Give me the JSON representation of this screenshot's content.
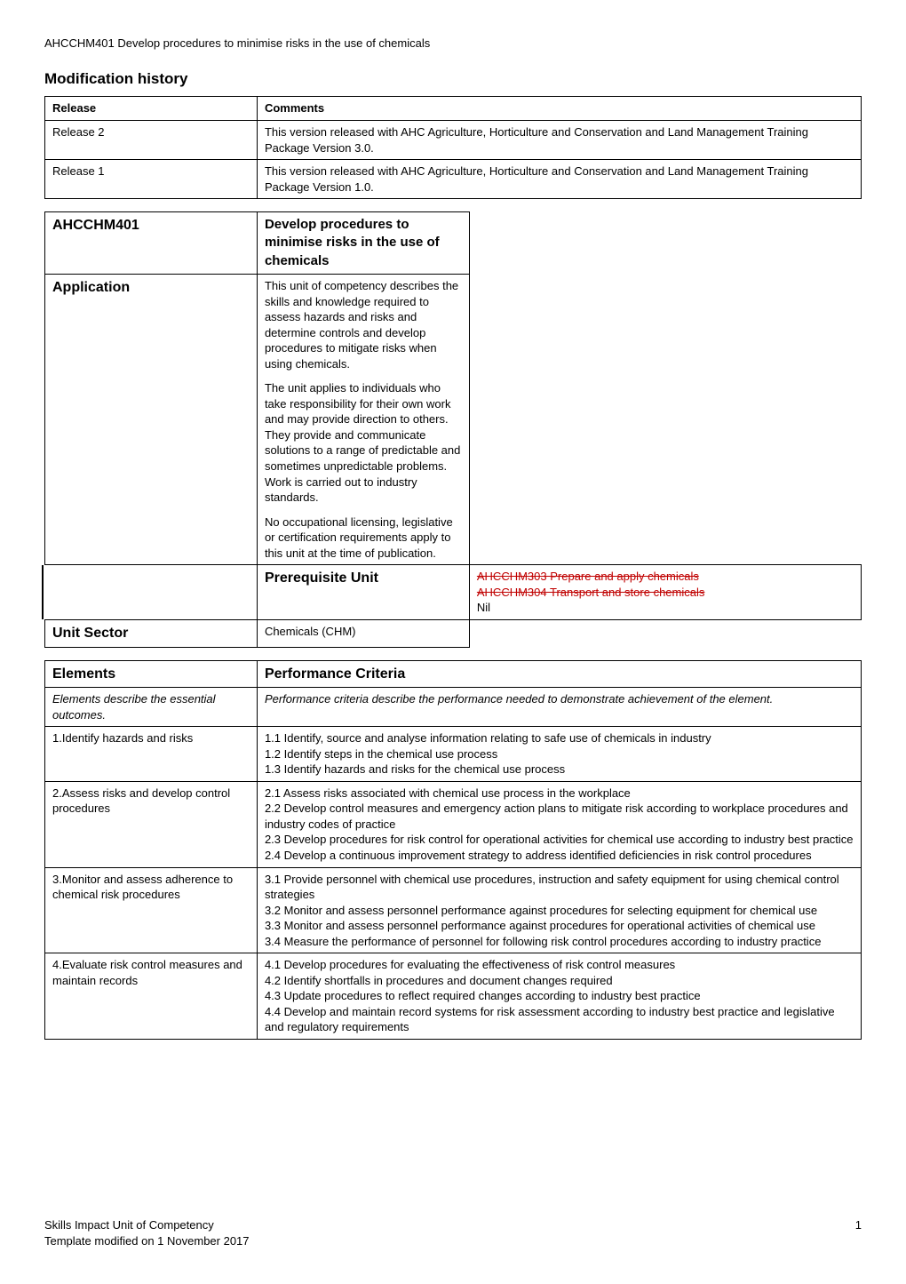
{
  "header": "AHCCHM401 Develop procedures to minimise risks in the use of chemicals",
  "modification_history": {
    "heading": "Modification history",
    "columns": [
      "Release",
      "Comments"
    ],
    "rows": [
      {
        "release": "Release 2",
        "comments": "This version released with AHC Agriculture, Horticulture and Conservation and Land Management Training Package Version 3.0."
      },
      {
        "release": "Release 1",
        "comments": "This version released with AHC Agriculture, Horticulture and Conservation and Land Management Training Package Version 1.0."
      }
    ]
  },
  "unit_table": {
    "code_label": "AHCCHM401",
    "title": "Develop procedures to minimise risks in the use of chemicals",
    "application_label": "Application",
    "application_paras": [
      "This unit of competency describes the skills and knowledge required to assess hazards and risks and determine controls and develop procedures to mitigate risks when using chemicals.",
      "The unit applies to individuals who take responsibility for their own work and may provide direction to others. They provide and communicate solutions to a range of predictable and sometimes unpredictable problems. Work is carried out to industry standards.",
      "No occupational licensing, legislative or certification requirements apply to this unit at the time of publication."
    ],
    "prereq_label": "Prerequisite Unit",
    "prereq_strike_lines": [
      "AHCCHM303 Prepare and apply chemicals",
      "AHCCHM304 Transport and store chemicals"
    ],
    "prereq_value": "Nil",
    "unit_sector_label": "Unit Sector",
    "unit_sector_value": "Chemicals (CHM)"
  },
  "elements_table": {
    "col1_header": "Elements",
    "col2_header": "Performance Criteria",
    "desc_row": {
      "left": "Elements describe the essential outcomes.",
      "right": "Performance criteria describe the performance needed to demonstrate achievement of the element."
    },
    "rows": [
      {
        "element": "1.Identify hazards and risks",
        "criteria": [
          "1.1 Identify, source and analyse information relating to safe use of chemicals in industry",
          "1.2 Identify steps in the chemical use process",
          "1.3 Identify hazards and risks for the chemical use process"
        ]
      },
      {
        "element": "2.Assess risks and develop control procedures",
        "criteria": [
          "2.1 Assess risks associated with chemical use process in the workplace",
          "2.2 Develop control measures and emergency action plans to mitigate risk according to workplace procedures and industry codes of practice",
          "2.3 Develop procedures for risk control for operational activities for chemical use according to industry best practice",
          "2.4 Develop a continuous improvement strategy to address identified deficiencies in risk control procedures"
        ]
      },
      {
        "element": "3.Monitor and assess adherence to chemical risk procedures",
        "criteria": [
          "3.1 Provide personnel with chemical use procedures, instruction and safety equipment for using chemical control strategies",
          "3.2 Monitor and assess personnel performance against procedures for selecting equipment for chemical use",
          "3.3 Monitor and assess personnel performance against procedures for operational activities of chemical use",
          "3.4 Measure the performance of personnel for following risk control procedures according to industry practice"
        ]
      },
      {
        "element": "4.Evaluate risk control measures and maintain records",
        "criteria": [
          "4.1 Develop procedures for evaluating the effectiveness of risk control measures",
          "4.2 Identify shortfalls in procedures and document changes required",
          "4.3 Update procedures to reflect required changes according to industry best practice",
          "4.4 Develop and maintain record systems for risk assessment according to industry best practice and legislative and regulatory requirements"
        ]
      }
    ]
  },
  "footer": {
    "left_line1": "Skills Impact Unit of Competency",
    "left_line2": "Template modified on 1 November 2017",
    "page_number": "1"
  }
}
